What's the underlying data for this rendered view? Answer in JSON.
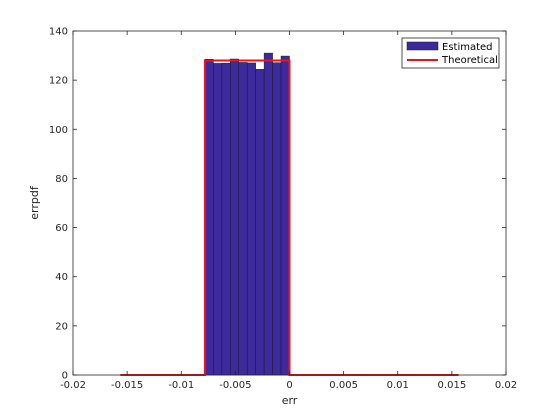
{
  "chart_data": {
    "type": "bar",
    "title": "",
    "xlabel": "err",
    "ylabel": "errpdf",
    "xlim": [
      -0.02,
      0.02
    ],
    "ylim": [
      0,
      140
    ],
    "xticks": [
      -0.02,
      -0.015,
      -0.01,
      -0.005,
      0,
      0.005,
      0.01,
      0.015,
      0.02
    ],
    "xtick_labels": [
      "-0.02",
      "-0.015",
      "-0.01",
      "-0.005",
      "0",
      "0.005",
      "0.01",
      "0.015",
      "0.02"
    ],
    "yticks": [
      0,
      20,
      40,
      60,
      80,
      100,
      120,
      140
    ],
    "ytick_labels": [
      "0",
      "20",
      "40",
      "60",
      "80",
      "100",
      "120",
      "140"
    ],
    "grid": false,
    "legend_position": "top-right",
    "series": [
      {
        "name": "Estimated",
        "type": "histogram",
        "color": "#3d2a9c",
        "edge_color": "#1a1a1a",
        "bin_edges": [
          -0.0078125,
          -0.00703125,
          -0.00625,
          -0.00546875,
          -0.0046875,
          -0.00390625,
          -0.003125,
          -0.00234375,
          -0.0015625,
          -0.00078125,
          0
        ],
        "values": [
          128.5,
          126.8,
          126.9,
          128.6,
          127.2,
          127.0,
          124.4,
          131.0,
          127.1,
          129.8
        ]
      },
      {
        "name": "Theoretical",
        "type": "line",
        "color": "#e8161b",
        "x": [
          -0.015625,
          -0.0078125,
          -0.0078125,
          -0.0078125,
          0,
          0,
          0,
          0.015625
        ],
        "y": [
          0,
          0,
          64,
          128,
          128,
          64,
          0,
          0
        ]
      }
    ]
  }
}
